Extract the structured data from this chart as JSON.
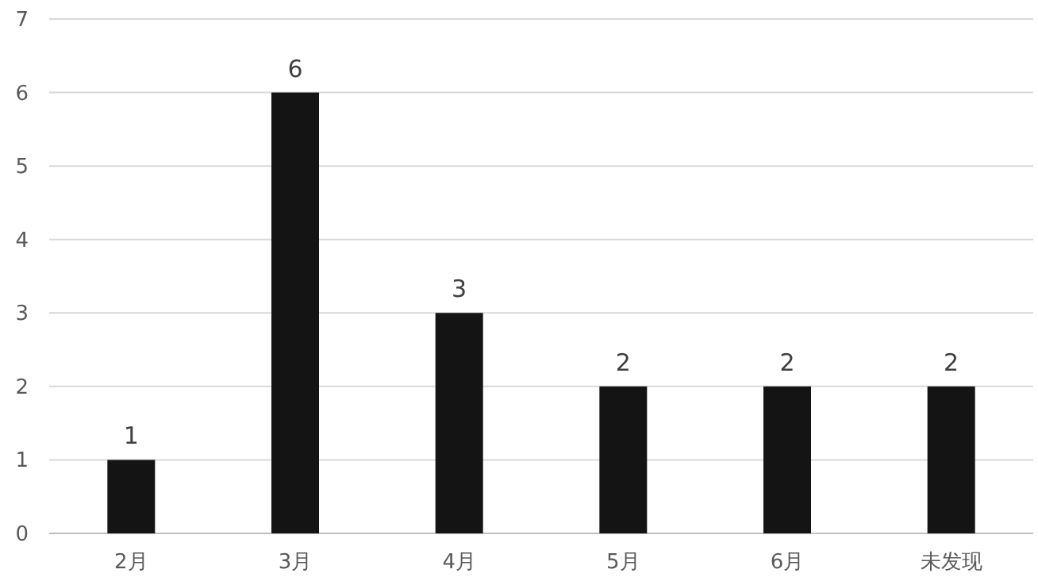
{
  "chart_data": {
    "type": "bar",
    "categories": [
      "2月",
      "3月",
      "4月",
      "5月",
      "6月",
      "未发现"
    ],
    "values": [
      1,
      6,
      3,
      2,
      2,
      2
    ],
    "color": "#141414",
    "ylim": [
      0,
      7
    ],
    "yticks": [
      0,
      1,
      2,
      3,
      4,
      5,
      6,
      7
    ],
    "grid": "y",
    "data_labels": true
  }
}
